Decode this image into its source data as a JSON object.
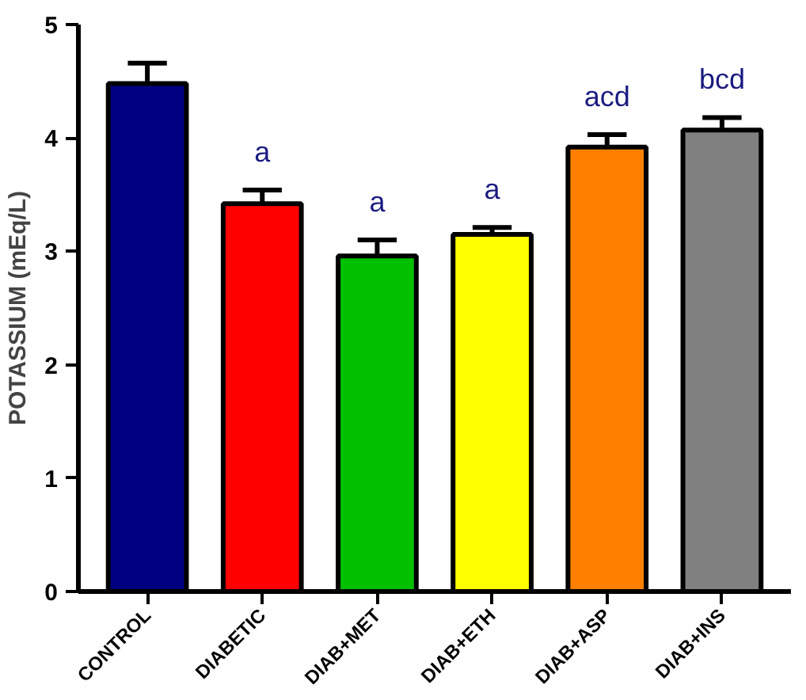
{
  "chart_data": {
    "type": "bar",
    "ylabel": "POTASSIUM (mEq/L)",
    "categories": [
      "CONTROL",
      "DIABETIC",
      "DIAB+MET",
      "DIAB+ETH",
      "DIAB+ASP",
      "DIAB+INS"
    ],
    "values": [
      4.48,
      3.42,
      2.96,
      3.15,
      3.92,
      4.07
    ],
    "errors": [
      0.18,
      0.12,
      0.14,
      0.06,
      0.11,
      0.11
    ],
    "colors": [
      "#000080",
      "#ff0000",
      "#00c000",
      "#ffff00",
      "#ff8000",
      "#808080"
    ],
    "ylim": [
      0,
      5
    ],
    "yticks": [
      0,
      1,
      2,
      3,
      4,
      5
    ],
    "grid": false,
    "annotations": [
      "a",
      "a",
      "a",
      "acd",
      "bcd"
    ]
  }
}
